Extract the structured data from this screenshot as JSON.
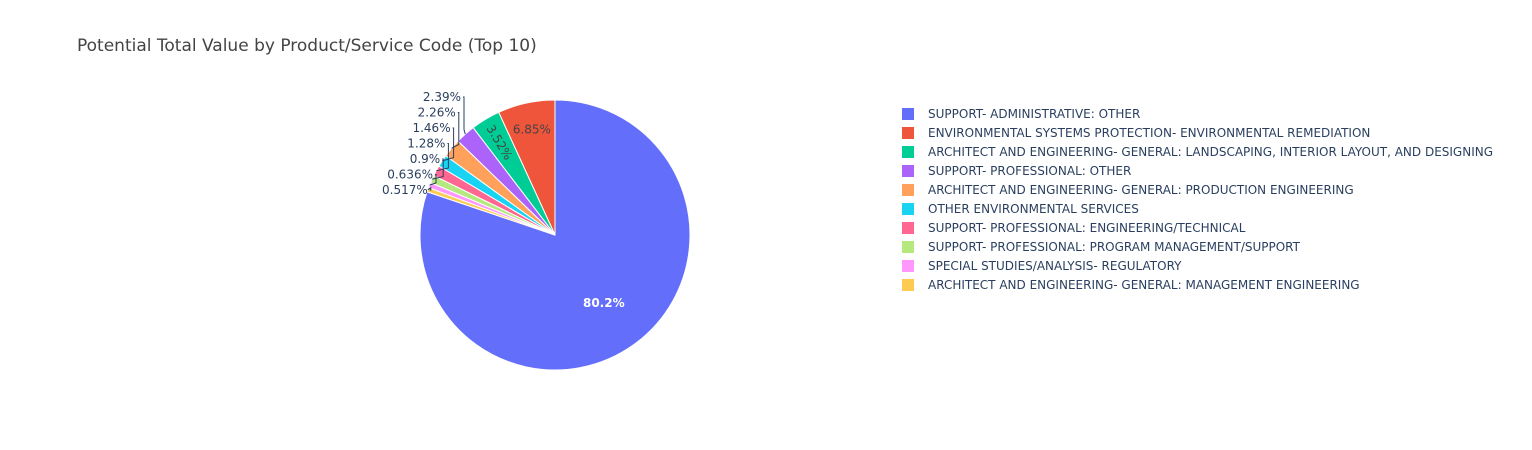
{
  "chart_data": {
    "type": "pie",
    "title": "Potential Total Value by Product/Service Code (Top 10)",
    "labels": [
      "SUPPORT- ADMINISTRATIVE: OTHER",
      "ENVIRONMENTAL SYSTEMS PROTECTION- ENVIRONMENTAL REMEDIATION",
      "ARCHITECT AND ENGINEERING- GENERAL: LANDSCAPING, INTERIOR LAYOUT, AND DESIGNING",
      "SUPPORT- PROFESSIONAL: OTHER",
      "ARCHITECT AND ENGINEERING- GENERAL: PRODUCTION ENGINEERING",
      "OTHER ENVIRONMENTAL SERVICES",
      "SUPPORT- PROFESSIONAL: ENGINEERING/TECHNICAL",
      "SUPPORT- PROFESSIONAL: PROGRAM MANAGEMENT/SUPPORT",
      "SPECIAL STUDIES/ANALYSIS- REGULATORY",
      "ARCHITECT AND ENGINEERING- GENERAL: MANAGEMENT ENGINEERING"
    ],
    "values": [
      80.2,
      6.85,
      3.52,
      2.39,
      2.26,
      1.46,
      1.28,
      0.9,
      0.636,
      0.517
    ],
    "text_labels": [
      "80.2%",
      "6.85%",
      "3.52%",
      "2.39%",
      "2.26%",
      "1.46%",
      "1.28%",
      "0.9%",
      "0.636%",
      "0.517%"
    ],
    "colors": [
      "#636efa",
      "#EF553B",
      "#00cc96",
      "#ab63fa",
      "#FFA15A",
      "#19d3f3",
      "#FF6692",
      "#B6E880",
      "#FF97FF",
      "#FECB52"
    ],
    "legend_position": "right",
    "start": "12 o'clock",
    "direction": "clockwise"
  }
}
